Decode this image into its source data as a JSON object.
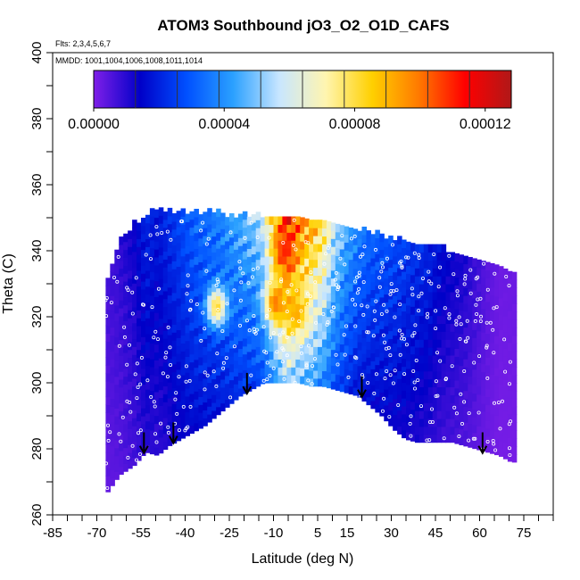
{
  "chart_data": {
    "type": "heatmap",
    "title": "ATOM3 Southbound jO3_O2_O1D_CAFS",
    "flights_label": "Flts: 2,3,4,5,6,7",
    "dates_label": "MMDD: 1001,1004,1006,1008,1011,1014",
    "xlabel": "Latitude (deg N)",
    "ylabel": "Theta (C)",
    "xlim": [
      -85,
      85
    ],
    "ylim": [
      260,
      400
    ],
    "x_ticks": [
      "-85",
      "-70",
      "-55",
      "-40",
      "-25",
      "-10",
      "5",
      "15",
      "30",
      "45",
      "60",
      "75"
    ],
    "y_ticks": [
      "260",
      "280",
      "300",
      "320",
      "340",
      "360",
      "380",
      "400"
    ],
    "colorbar": {
      "range": [
        0,
        0.000128
      ],
      "tick_labels": [
        "0.00000",
        "0.00004",
        "0.00008",
        "0.00012"
      ],
      "colors": [
        "#7f1fe8",
        "#0000c8",
        "#0050ff",
        "#2aa0ff",
        "#c8e6ff",
        "#fff5b0",
        "#ffd000",
        "#ff7a00",
        "#ff0000",
        "#b01818"
      ]
    },
    "arrows": [
      {
        "lat": -54,
        "theta": 285
      },
      {
        "lat": -44,
        "theta": 288
      },
      {
        "lat": -19,
        "theta": 303
      },
      {
        "lat": 20,
        "theta": 302
      },
      {
        "lat": 61,
        "theta": 285
      }
    ],
    "profile": [
      {
        "lat": -67,
        "bottom": 267,
        "top": 330,
        "j": 6e-06
      },
      {
        "lat": -63,
        "bottom": 272,
        "top": 342,
        "j": 8e-06
      },
      {
        "lat": -58,
        "bottom": 275,
        "top": 347,
        "j": 1.2e-05
      },
      {
        "lat": -54,
        "bottom": 279,
        "top": 350,
        "j": 1.8e-05
      },
      {
        "lat": -50,
        "bottom": 278,
        "top": 351,
        "j": 1.6e-05
      },
      {
        "lat": -46,
        "bottom": 281,
        "top": 351,
        "j": 2e-05
      },
      {
        "lat": -42,
        "bottom": 283,
        "top": 351,
        "j": 2.4e-05
      },
      {
        "lat": -38,
        "bottom": 285,
        "top": 351,
        "j": 2.8e-05
      },
      {
        "lat": -34,
        "bottom": 287,
        "top": 351,
        "j": 3e-05
      },
      {
        "lat": -30,
        "bottom": 290,
        "top": 351,
        "j": 3.2e-05
      },
      {
        "lat": -26,
        "bottom": 293,
        "top": 350,
        "j": 3.6e-05
      },
      {
        "lat": -22,
        "bottom": 296,
        "top": 350,
        "j": 4e-05
      },
      {
        "lat": -18,
        "bottom": 298,
        "top": 350,
        "j": 4.4e-05
      },
      {
        "lat": -14,
        "bottom": 300,
        "top": 349,
        "j": 5.2e-05
      },
      {
        "lat": -10,
        "bottom": 300,
        "top": 348,
        "j": 7.8e-05
      },
      {
        "lat": -6,
        "bottom": 300,
        "top": 350,
        "j": 0.0001
      },
      {
        "lat": -2,
        "bottom": 300,
        "top": 350,
        "j": 8.8e-05
      },
      {
        "lat": 2,
        "bottom": 299,
        "top": 349,
        "j": 8e-05
      },
      {
        "lat": 6,
        "bottom": 299,
        "top": 349,
        "j": 7e-05
      },
      {
        "lat": 10,
        "bottom": 298,
        "top": 347,
        "j": 5e-05
      },
      {
        "lat": 14,
        "bottom": 297,
        "top": 347,
        "j": 4e-05
      },
      {
        "lat": 18,
        "bottom": 296,
        "top": 346,
        "j": 3.2e-05
      },
      {
        "lat": 22,
        "bottom": 293,
        "top": 345,
        "j": 2.8e-05
      },
      {
        "lat": 26,
        "bottom": 290,
        "top": 344,
        "j": 2.6e-05
      },
      {
        "lat": 30,
        "bottom": 286,
        "top": 343,
        "j": 2.4e-05
      },
      {
        "lat": 34,
        "bottom": 283,
        "top": 342,
        "j": 2.2e-05
      },
      {
        "lat": 38,
        "bottom": 282,
        "top": 341,
        "j": 2e-05
      },
      {
        "lat": 42,
        "bottom": 282,
        "top": 341,
        "j": 1.8e-05
      },
      {
        "lat": 46,
        "bottom": 282,
        "top": 340,
        "j": 1.4e-05
      },
      {
        "lat": 50,
        "bottom": 282,
        "top": 339,
        "j": 1.2e-05
      },
      {
        "lat": 54,
        "bottom": 281,
        "top": 338,
        "j": 1e-05
      },
      {
        "lat": 58,
        "bottom": 280,
        "top": 337,
        "j": 7e-06
      },
      {
        "lat": 62,
        "bottom": 279,
        "top": 336,
        "j": 4e-06
      },
      {
        "lat": 66,
        "bottom": 278,
        "top": 334,
        "j": 2e-06
      },
      {
        "lat": 70,
        "bottom": 276,
        "top": 332,
        "j": 2e-06
      }
    ],
    "hotspots": [
      {
        "lat": -7,
        "theta": 339,
        "j": 0.00011
      },
      {
        "lat": -10,
        "theta": 323,
        "j": 0.0001
      },
      {
        "lat": -3,
        "theta": 320,
        "j": 9.2e-05
      },
      {
        "lat": -30,
        "theta": 322,
        "j": 8.2e-05
      }
    ]
  }
}
